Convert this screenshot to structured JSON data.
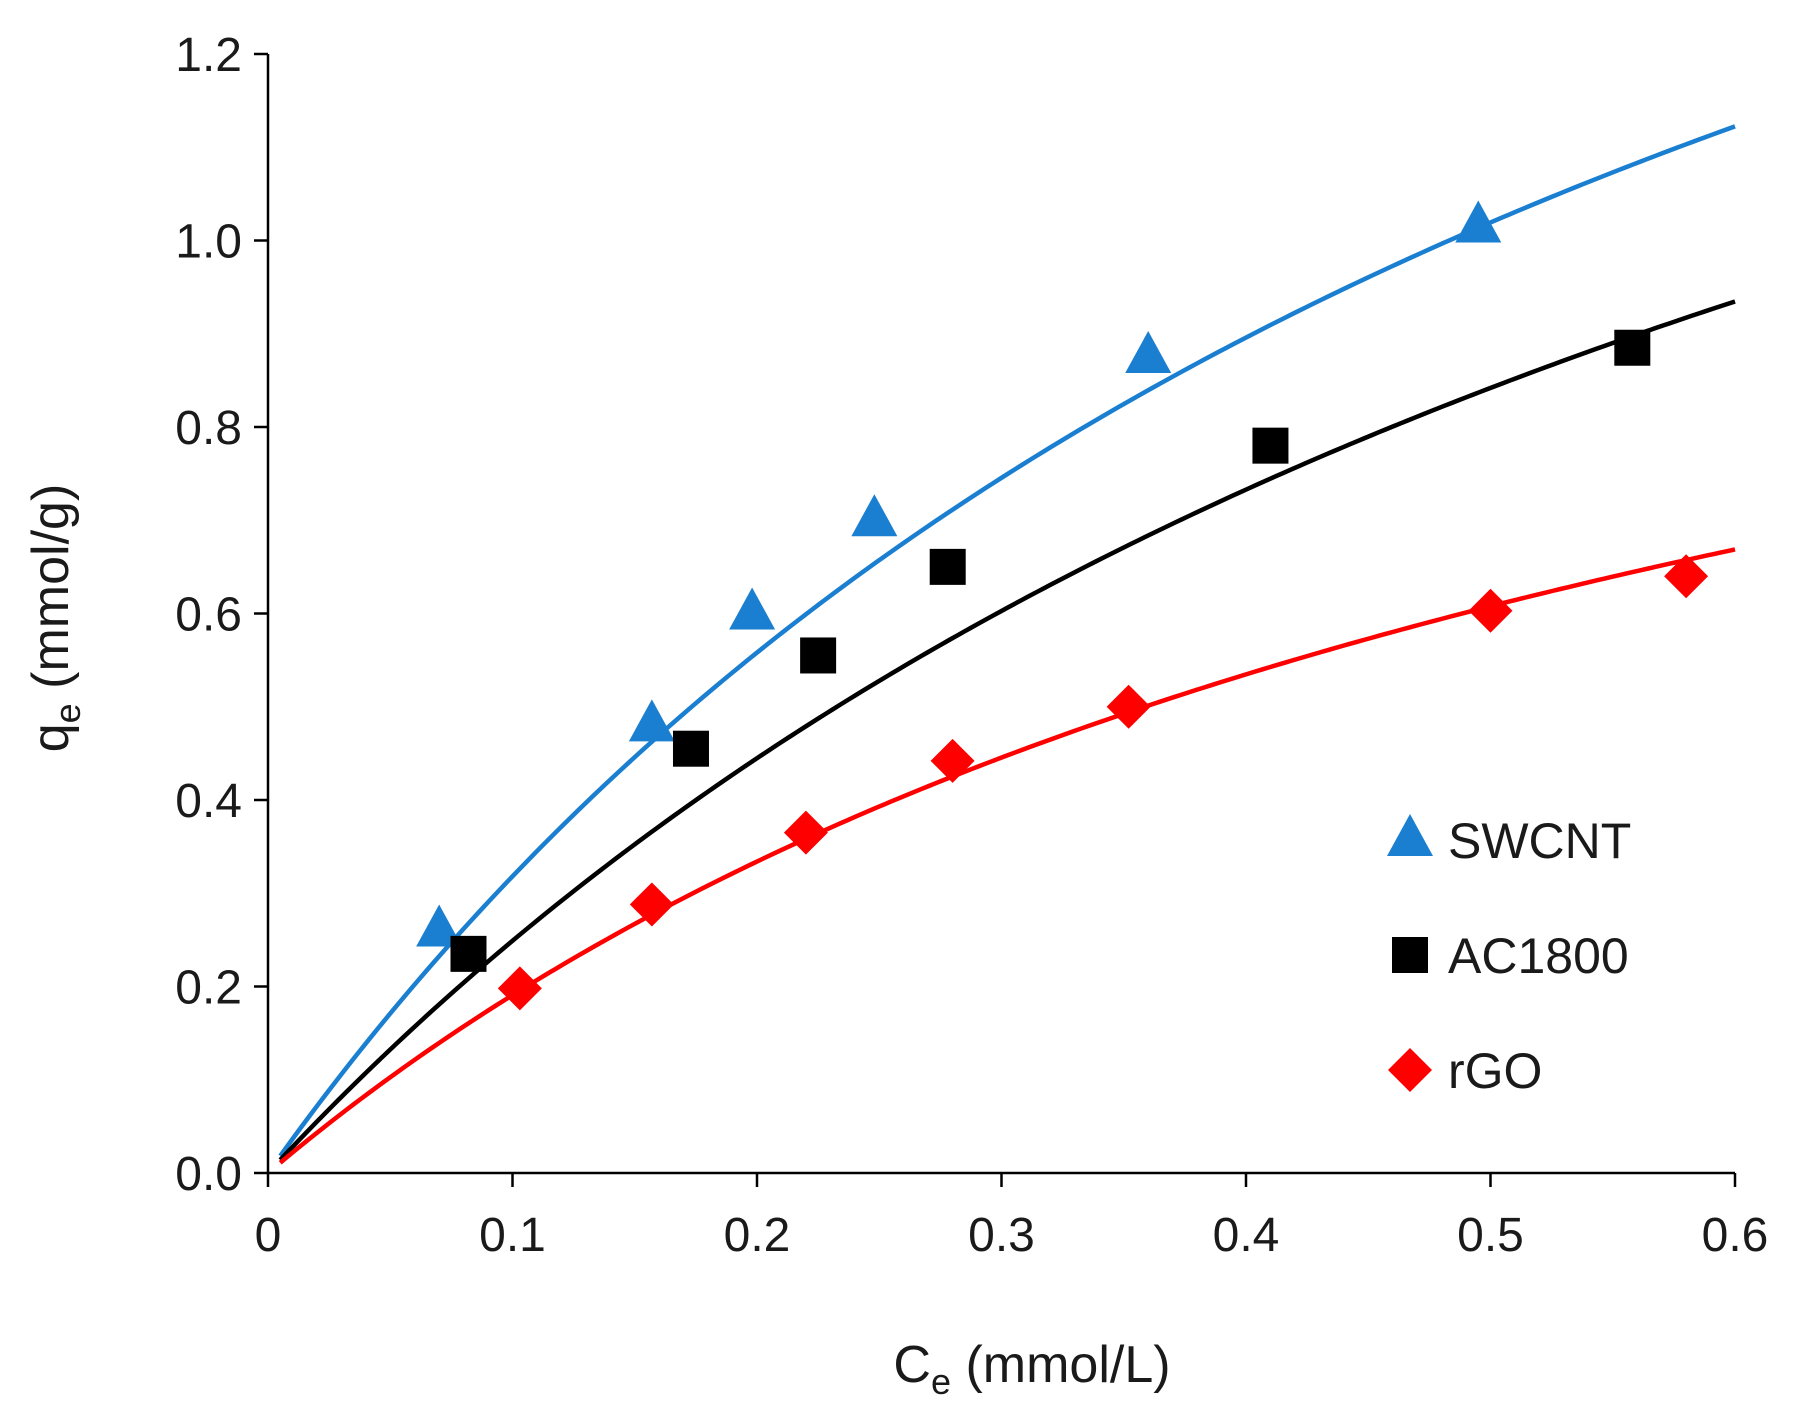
{
  "chart_data": {
    "type": "scatter",
    "title": "",
    "xlabel": {
      "main": "C",
      "sub": "e",
      "rest": " (mmol/L)"
    },
    "ylabel": {
      "main": "q",
      "sub": "e",
      "rest": " (mmol/g)"
    },
    "xlim": [
      0,
      0.6
    ],
    "ylim": [
      0,
      1.2
    ],
    "x_ticks": [
      0,
      0.1,
      0.2,
      0.3,
      0.4,
      0.5,
      0.6
    ],
    "x_tick_labels": [
      "0",
      "0.1",
      "0.2",
      "0.3",
      "0.4",
      "0.5",
      "0.6"
    ],
    "y_ticks": [
      0,
      0.2,
      0.4,
      0.6,
      0.8,
      1.0,
      1.2
    ],
    "y_tick_labels": [
      "0.0",
      "0.2",
      "0.4",
      "0.6",
      "0.8",
      "1.0",
      "1.2"
    ],
    "grid": false,
    "legend_position": "bottom-right",
    "series": [
      {
        "name": "SWCNT",
        "marker": "triangle",
        "color": "#1a7fd0",
        "line_color": "#1a7fd0",
        "x": [
          0.07,
          0.157,
          0.198,
          0.248,
          0.36,
          0.495
        ],
        "y": [
          0.26,
          0.48,
          0.6,
          0.7,
          0.875,
          1.015
        ],
        "fit": {
          "model": "langmuir",
          "qmax": 2.27,
          "KL": 1.63
        }
      },
      {
        "name": "AC1800",
        "marker": "square",
        "color": "#000000",
        "line_color": "#000000",
        "x": [
          0.082,
          0.173,
          0.225,
          0.278,
          0.41,
          0.558
        ],
        "y": [
          0.235,
          0.455,
          0.555,
          0.65,
          0.78,
          0.885
        ],
        "fit": {
          "model": "langmuir",
          "qmax": 2.08,
          "KL": 1.36
        }
      },
      {
        "name": "rGO",
        "marker": "diamond",
        "color": "#ff0000",
        "line_color": "#ff0000",
        "x": [
          0.103,
          0.157,
          0.22,
          0.28,
          0.352,
          0.5,
          0.58
        ],
        "y": [
          0.198,
          0.288,
          0.365,
          0.442,
          0.5,
          0.603,
          0.64
        ],
        "fit": {
          "model": "langmuir",
          "qmax": 1.34,
          "KL": 1.66
        }
      }
    ]
  }
}
